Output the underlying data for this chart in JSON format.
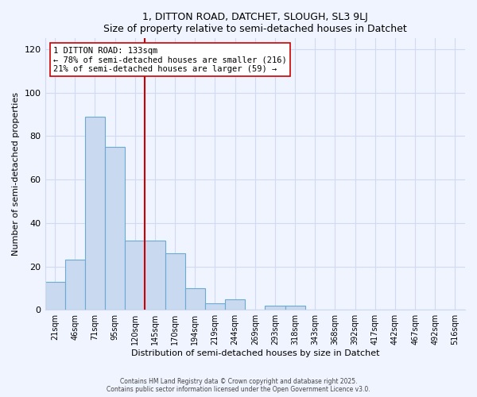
{
  "title": "1, DITTON ROAD, DATCHET, SLOUGH, SL3 9LJ",
  "subtitle": "Size of property relative to semi-detached houses in Datchet",
  "xlabel": "Distribution of semi-detached houses by size in Datchet",
  "ylabel": "Number of semi-detached properties",
  "bar_labels": [
    "21sqm",
    "46sqm",
    "71sqm",
    "95sqm",
    "120sqm",
    "145sqm",
    "170sqm",
    "194sqm",
    "219sqm",
    "244sqm",
    "269sqm",
    "293sqm",
    "318sqm",
    "343sqm",
    "368sqm",
    "392sqm",
    "417sqm",
    "442sqm",
    "467sqm",
    "492sqm",
    "516sqm"
  ],
  "bar_values": [
    13,
    23,
    89,
    75,
    32,
    32,
    26,
    10,
    3,
    5,
    0,
    2,
    2,
    0,
    0,
    0,
    0,
    0,
    0,
    0,
    0
  ],
  "bar_color": "#c8d9f0",
  "bar_edge_color": "#6aaad4",
  "vline_color": "#cc0000",
  "annotation_title": "1 DITTON ROAD: 133sqm",
  "annotation_line1": "← 78% of semi-detached houses are smaller (216)",
  "annotation_line2": "21% of semi-detached houses are larger (59) →",
  "annotation_box_facecolor": "#ffffff",
  "annotation_box_edgecolor": "#cc0000",
  "ylim": [
    0,
    125
  ],
  "yticks": [
    0,
    20,
    40,
    60,
    80,
    100,
    120
  ],
  "footnote1": "Contains HM Land Registry data © Crown copyright and database right 2025.",
  "footnote2": "Contains public sector information licensed under the Open Government Licence v3.0.",
  "bg_color": "#f0f4ff",
  "grid_color": "#d0daf0"
}
